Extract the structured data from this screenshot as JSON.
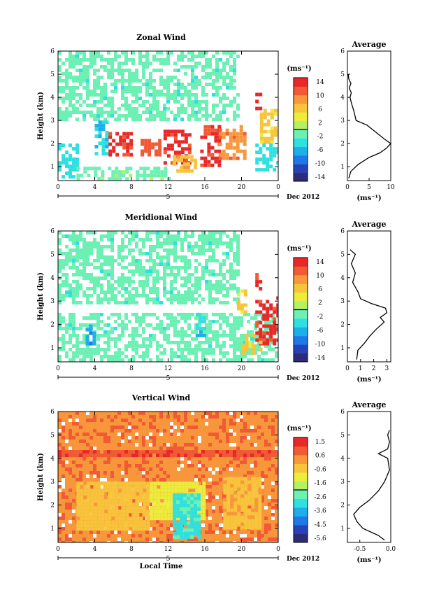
{
  "chart_data": [
    {
      "type": "heatmap",
      "title": "Zonal Wind",
      "ylabel": "Height (km)",
      "ylim": [
        0.4,
        6
      ],
      "y_ticks": [
        "1",
        "2",
        "3",
        "4",
        "5",
        "6"
      ],
      "xlim": [
        0,
        24
      ],
      "x_ticks": [
        "0",
        "4",
        "8",
        "12",
        "16",
        "20",
        "0"
      ],
      "day_label": "5",
      "month_label": "Dec 2012",
      "colorbar": {
        "unit": "(ms⁻¹)",
        "ticks": [
          "14",
          "10",
          "6",
          "2",
          "-2",
          "-6",
          "-10",
          "-14"
        ],
        "range": [
          -16,
          16
        ]
      },
      "field_regions": [
        {
          "x": [
            0,
            19.5
          ],
          "y": [
            3.0,
            6.0
          ],
          "value": -1.5
        },
        {
          "x": [
            0,
            2
          ],
          "y": [
            0.5,
            2.0
          ],
          "value": -4
        },
        {
          "x": [
            2,
            12
          ],
          "y": [
            0.4,
            1.0
          ],
          "value": -1
        },
        {
          "x": [
            4,
            5.5
          ],
          "y": [
            1.5,
            3.0
          ],
          "value": -5
        },
        {
          "x": [
            5.5,
            8
          ],
          "y": [
            1.5,
            2.5
          ],
          "value": 14
        },
        {
          "x": [
            9,
            11
          ],
          "y": [
            1.5,
            2.2
          ],
          "value": 12
        },
        {
          "x": [
            11.5,
            14.5
          ],
          "y": [
            1.2,
            2.6
          ],
          "value": 14
        },
        {
          "x": [
            12.5,
            15
          ],
          "y": [
            0.8,
            1.5
          ],
          "value": 7
        },
        {
          "x": [
            15.5,
            17.5
          ],
          "y": [
            1.0,
            2.8
          ],
          "value": 14
        },
        {
          "x": [
            17.5,
            20.5
          ],
          "y": [
            1.3,
            2.8
          ],
          "value": 10
        },
        {
          "x": [
            21.5,
            22
          ],
          "y": [
            3.5,
            4.2
          ],
          "value": 14
        },
        {
          "x": [
            22,
            24
          ],
          "y": [
            2.0,
            3.5
          ],
          "value": 6
        },
        {
          "x": [
            21.5,
            24
          ],
          "y": [
            0.8,
            2.0
          ],
          "value": -4
        }
      ],
      "profile": {
        "title": "Average",
        "xlabel": "(ms⁻¹)",
        "xlim": [
          0,
          10
        ],
        "x_ticks": [
          "0",
          "5",
          "10"
        ],
        "ylim": [
          0.4,
          6
        ],
        "y_ticks": [
          "1",
          "2",
          "3",
          "4",
          "5",
          "6"
        ],
        "x": [
          0.3,
          0.8,
          2.5,
          5.0,
          7.5,
          9.0,
          10.0,
          8.5,
          6.5,
          4.5,
          2.0,
          1.5,
          1.0,
          0.6,
          0.9,
          0.4,
          0.8,
          0.3,
          0.2
        ],
        "y": [
          0.5,
          0.8,
          1.1,
          1.4,
          1.6,
          1.8,
          2.0,
          2.2,
          2.5,
          2.8,
          3.0,
          3.4,
          3.7,
          4.0,
          4.2,
          4.4,
          4.6,
          4.8,
          5.0
        ]
      }
    },
    {
      "type": "heatmap",
      "title": "Meridional Wind",
      "ylabel": "Height (km)",
      "ylim": [
        0.4,
        6
      ],
      "y_ticks": [
        "1",
        "2",
        "3",
        "4",
        "5",
        "6"
      ],
      "xlim": [
        0,
        24
      ],
      "x_ticks": [
        "0",
        "4",
        "8",
        "12",
        "16",
        "20",
        "0"
      ],
      "day_label": "5",
      "month_label": "Dec 2012",
      "colorbar": {
        "unit": "(ms⁻¹)",
        "ticks": [
          "14",
          "10",
          "6",
          "2",
          "-2",
          "-6",
          "-10",
          "-14"
        ],
        "range": [
          -16,
          16
        ]
      },
      "field_regions": [
        {
          "x": [
            0,
            19.5
          ],
          "y": [
            3.0,
            6.0
          ],
          "value": -1.5
        },
        {
          "x": [
            0,
            24
          ],
          "y": [
            0.5,
            2.5
          ],
          "value": -1.5
        },
        {
          "x": [
            3,
            4
          ],
          "y": [
            1.2,
            2.0
          ],
          "value": -7
        },
        {
          "x": [
            15,
            16
          ],
          "y": [
            1.5,
            2.5
          ],
          "value": -5
        },
        {
          "x": [
            19.5,
            20.5
          ],
          "y": [
            2.5,
            3.5
          ],
          "value": 6
        },
        {
          "x": [
            21.5,
            22
          ],
          "y": [
            3.5,
            4.2
          ],
          "value": 14
        },
        {
          "x": [
            21.5,
            24
          ],
          "y": [
            1.2,
            3.2
          ],
          "value": 14
        },
        {
          "x": [
            20,
            22
          ],
          "y": [
            0.8,
            1.6
          ],
          "value": 6
        }
      ],
      "profile": {
        "title": "Average",
        "xlabel": "(ms⁻¹)",
        "xlim": [
          0,
          3.3
        ],
        "x_ticks": [
          "0",
          "1",
          "2",
          "3"
        ],
        "ylim": [
          0.4,
          6
        ],
        "y_ticks": [
          "1",
          "2",
          "3",
          "4",
          "5",
          "6"
        ],
        "x": [
          0.7,
          0.8,
          1.3,
          1.7,
          2.2,
          2.8,
          2.5,
          3.0,
          2.9,
          1.8,
          1.0,
          0.8,
          0.4,
          0.6,
          0.3,
          0.6,
          0.2
        ],
        "y": [
          0.5,
          0.9,
          1.2,
          1.5,
          1.8,
          2.1,
          2.3,
          2.5,
          2.7,
          2.9,
          3.1,
          3.4,
          3.8,
          4.2,
          4.6,
          5.0,
          5.2
        ]
      }
    },
    {
      "type": "heatmap",
      "title": "Vertical Wind",
      "ylabel": "Height (km)",
      "ylim": [
        0.4,
        6
      ],
      "y_ticks": [
        "1",
        "2",
        "3",
        "4",
        "5",
        "6"
      ],
      "xlim": [
        0,
        24
      ],
      "x_ticks": [
        "0",
        "4",
        "8",
        "12",
        "16",
        "20",
        "0"
      ],
      "day_label": "5",
      "month_label": "Dec 2012",
      "xlabel": "Local Time",
      "colorbar": {
        "unit": "(ms⁻¹)",
        "ticks": [
          "1.5",
          "0.6",
          "-0.6",
          "-1.6",
          "-2.6",
          "-3.6",
          "-4.5",
          "-5.6"
        ],
        "range": [
          -6,
          2
        ]
      },
      "field_regions": [
        {
          "x": [
            0,
            24
          ],
          "y": [
            0.4,
            6.0
          ],
          "value": 0.5
        },
        {
          "x": [
            0,
            24
          ],
          "y": [
            4.2,
            4.35
          ],
          "value": 1.2
        },
        {
          "x": [
            2,
            10
          ],
          "y": [
            1.0,
            3.0
          ],
          "value": -0.3
        },
        {
          "x": [
            10,
            16
          ],
          "y": [
            1.5,
            3.0
          ],
          "value": -1.0
        },
        {
          "x": [
            12.5,
            15.5
          ],
          "y": [
            0.7,
            2.5
          ],
          "value": -2.8
        },
        {
          "x": [
            18,
            22
          ],
          "y": [
            1.0,
            3.2
          ],
          "value": -0.2
        }
      ],
      "profile": {
        "title": "Average",
        "xlabel": "(ms⁻¹)",
        "xlim": [
          -0.7,
          0.0
        ],
        "x_ticks": [
          "-0.5",
          "0.0"
        ],
        "ylim": [
          0.4,
          6
        ],
        "y_ticks": [
          "1",
          "2",
          "3",
          "4",
          "5",
          "6"
        ],
        "x": [
          -0.1,
          -0.2,
          -0.45,
          -0.55,
          -0.6,
          -0.5,
          -0.35,
          -0.2,
          -0.1,
          -0.02,
          -0.05,
          -0.2,
          -0.05,
          -0.02,
          -0.05,
          -0.02
        ],
        "y": [
          0.5,
          0.7,
          1.0,
          1.3,
          1.6,
          1.9,
          2.2,
          2.6,
          3.0,
          3.5,
          4.0,
          4.2,
          4.4,
          4.7,
          5.0,
          5.2
        ]
      }
    }
  ]
}
